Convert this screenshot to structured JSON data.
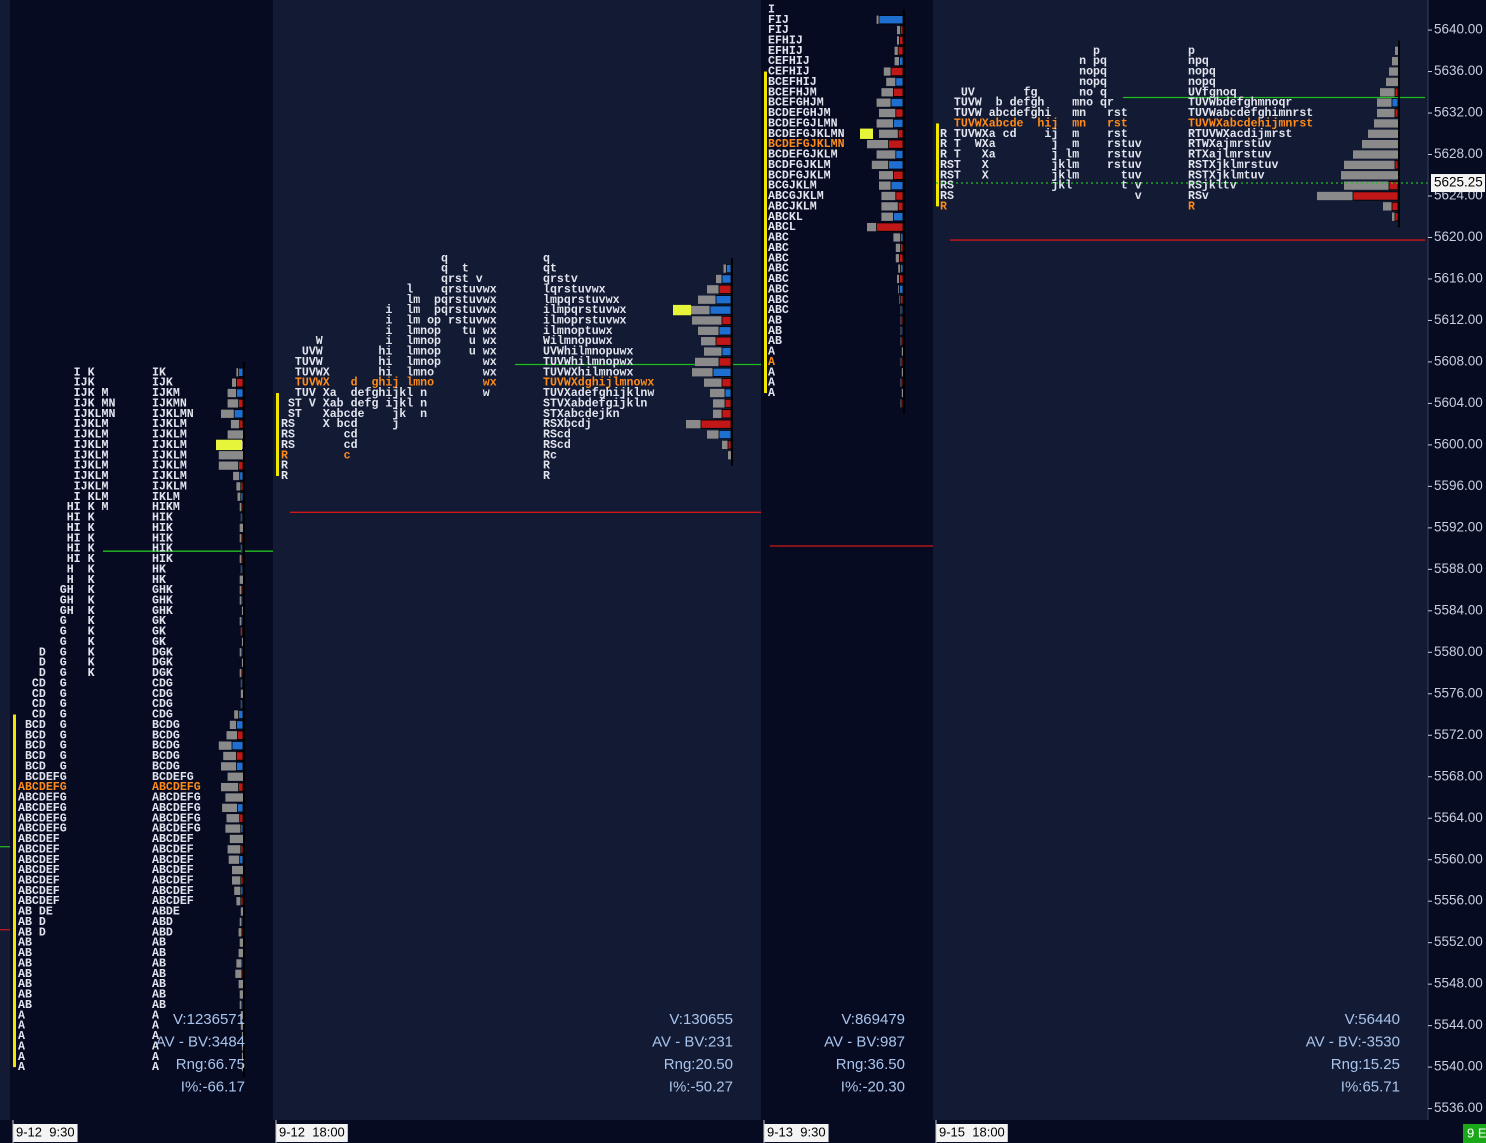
{
  "chart_data": {
    "type": "market-profile",
    "ylim": [
      5534.9,
      5642.9
    ],
    "yticks": [
      {
        "value": 5640,
        "label": "5640.00"
      },
      {
        "value": 5636,
        "label": "5636.00"
      },
      {
        "value": 5632,
        "label": "5632.00"
      },
      {
        "value": 5628,
        "label": "5628.00"
      },
      {
        "value": 5624,
        "label": "5624.00"
      },
      {
        "value": 5620,
        "label": "5620.00"
      },
      {
        "value": 5616,
        "label": "5616.00"
      },
      {
        "value": 5612,
        "label": "5612.00"
      },
      {
        "value": 5608,
        "label": "5608.00"
      },
      {
        "value": 5604,
        "label": "5604.00"
      },
      {
        "value": 5600,
        "label": "5600.00"
      },
      {
        "value": 5596,
        "label": "5596.00"
      },
      {
        "value": 5592,
        "label": "5592.00"
      },
      {
        "value": 5588,
        "label": "5588.00"
      },
      {
        "value": 5584,
        "label": "5584.00"
      },
      {
        "value": 5580,
        "label": "5580.00"
      },
      {
        "value": 5576,
        "label": "5576.00"
      },
      {
        "value": 5572,
        "label": "5572.00"
      },
      {
        "value": 5568,
        "label": "5568.00"
      },
      {
        "value": 5564,
        "label": "5564.00"
      },
      {
        "value": 5560,
        "label": "5560.00"
      },
      {
        "value": 5556,
        "label": "5556.00"
      },
      {
        "value": 5552,
        "label": "5552.00"
      },
      {
        "value": 5548,
        "label": "5548.00"
      },
      {
        "value": 5544,
        "label": "5544.00"
      },
      {
        "value": 5540,
        "label": "5540.00"
      },
      {
        "value": 5536,
        "label": "5536.00"
      }
    ],
    "last_price": 5625.25,
    "colors": {
      "letters": "#e2e5ee",
      "highlight": "#ff8c1a",
      "buy": "#1f6fd1",
      "sell": "#c01818",
      "volume": "#8a8a8a",
      "ib": "#f2e600",
      "vpoc": "#e6f53a",
      "stats": "#a9c4ec",
      "last": "#22c322"
    },
    "edge_levels": [
      {
        "price": 5561.25,
        "color": "#20c020"
      },
      {
        "price": 5553.25,
        "color": "#d01818"
      }
    ],
    "footer_tag": "9 E",
    "sessions": [
      {
        "label": "9-12  9:30",
        "stats": [
          "V:1236571",
          "AV - BV:3484",
          "Rng:66.75",
          "I%:-66.17"
        ],
        "ib": [
          5574,
          5540
        ],
        "vpoc": 5600,
        "levels": [
          {
            "price": 5589.75,
            "color": "#20c020"
          }
        ],
        "profiles": [
          {
            "top": 5607,
            "highlight": [
              40
            ],
            "rows": [
              "        I K",
              "        IJK",
              "        IJK M",
              "        IJK MN",
              "        IJKLMN",
              "        IJKLM",
              "        IJKLM",
              "        IJKLM",
              "        IJKLM",
              "        IJKLM",
              "        IJKLM",
              "        IJKLM",
              "        I KLM",
              "       HI K M",
              "       HI K",
              "       HI K",
              "       HI K",
              "       HI K",
              "       HI K",
              "       H  K",
              "       H  K",
              "      GH  K",
              "      GH  K",
              "      GH  K",
              "      G   K",
              "      G   K",
              "      G   K",
              "   D  G   K",
              "   D  G   K",
              "   D  G   K",
              "  CD  G",
              "  CD  G",
              "  CD  G",
              "  CD  G",
              " BCD  G",
              " BCD  G",
              " BCD  G",
              " BCD  G",
              " BCD  G",
              " BCDEFG",
              "ABCDEFG",
              "ABCDEFG",
              "ABCDEFG",
              "ABCDEFG",
              "ABCDEFG",
              "ABCDEF",
              "ABCDEF",
              "ABCDEF",
              "ABCDEF",
              "ABCDEF",
              "ABCDEF",
              "ABCDEF",
              "AB DE",
              "AB D",
              "AB D",
              "AB",
              "AB",
              "AB",
              "AB",
              "AB",
              "AB",
              "AB",
              "A",
              "A",
              "A",
              "A",
              "A",
              "A"
            ]
          },
          {
            "top": 5607,
            "highlight": [
              40
            ],
            "rows": [
              "IK",
              "IJK",
              "IJKM",
              "IJKMN",
              "IJKLMN",
              "IJKLM",
              "IJKLM",
              "IJKLM",
              "IJKLM",
              "IJKLM",
              "IJKLM",
              "IJKLM",
              "IKLM",
              "HIKM",
              "HIK",
              "HIK",
              "HIK",
              "HIK",
              "HIK",
              "HK",
              "HK",
              "GHK",
              "GHK",
              "GHK",
              "GK",
              "GK",
              "GK",
              "DGK",
              "DGK",
              "DGK",
              "CDG",
              "CDG",
              "CDG",
              "CDG",
              "BCDG",
              "BCDG",
              "BCDG",
              "BCDG",
              "BCDG",
              "BCDEFG",
              "ABCDEFG",
              "ABCDEFG",
              "ABCDEFG",
              "ABCDEFG",
              "ABCDEFG",
              "ABCDEF",
              "ABCDEF",
              "ABCDEF",
              "ABCDEF",
              "ABCDEF",
              "ABCDEF",
              "ABCDEF",
              "ABDE",
              "ABD",
              "ABD",
              "AB",
              "AB",
              "AB",
              "AB",
              "AB",
              "AB",
              "AB",
              "A",
              "A",
              "A",
              "A",
              "A",
              "A"
            ]
          }
        ],
        "volume": {
          "top": 5607,
          "values": [
            2,
            4,
            8,
            10,
            12,
            8,
            14,
            20,
            22,
            18,
            6,
            4,
            3,
            2,
            1,
            3,
            2,
            1,
            2,
            1,
            3,
            2,
            2,
            1,
            2,
            1,
            1,
            2,
            1,
            2,
            1,
            2,
            1,
            4,
            6,
            10,
            12,
            12,
            14,
            14,
            16,
            16,
            14,
            12,
            14,
            12,
            12,
            10,
            10,
            8,
            6,
            4,
            2,
            2,
            3,
            3,
            4,
            5,
            6,
            4,
            3,
            2,
            2,
            2,
            1,
            1,
            1,
            1
          ],
          "delta": [
            4,
            -6,
            6,
            -4,
            8,
            -3,
            0,
            0,
            0,
            -4,
            3,
            -2,
            2,
            -1,
            1,
            0,
            -1,
            1,
            -1,
            1,
            0,
            -1,
            1,
            0,
            1,
            -1,
            0,
            1,
            0,
            -1,
            1,
            0,
            1,
            4,
            6,
            -5,
            10,
            -6,
            6,
            0,
            -4,
            0,
            5,
            -3,
            2,
            0,
            -2,
            3,
            0,
            -2,
            2,
            -2,
            0,
            1,
            -1,
            0,
            0,
            1,
            -1,
            0,
            0,
            1,
            0,
            0,
            0,
            0,
            0,
            0
          ]
        }
      },
      {
        "label": "9-12  18:00",
        "stats": [
          "V:130655",
          "AV - BV:231",
          "Rng:20.50",
          "I%:-50.27"
        ],
        "ib": [
          5605,
          5597
        ],
        "vpoc": 5613,
        "levels": [
          {
            "price": 5593.5,
            "color": "#d01818"
          },
          {
            "price": 5607.75,
            "color": "#20c020"
          }
        ],
        "profiles": [
          {
            "top": 5618,
            "highlight": [
              12,
              19
            ],
            "rows": [
              "                       q",
              "                       q  t",
              "                       qrst v",
              "                  l    qrstuvwx",
              "                  lm  pqrstuvwx",
              "               i  lm  pqrstuvwx",
              "               i  lm op rstuvwx",
              "               i  lmnop   tu wx",
              "     W         i  lmnop    u wx",
              "   UVW        hi  lmnop    u wx",
              "  TUVW        hi  lmnop      wx",
              "  TUVWX       hi  lmno       wx",
              "  TUVWX   d  ghij lmno       wx",
              "  TUV Xa  defghijkl n        w",
              " ST V Xab defg ijkl n",
              " ST   Xabcde    jk  n",
              "RS    X bcd     j",
              "RS       cd",
              "RS       cd",
              "R        c",
              "R",
              "R"
            ]
          },
          {
            "top": 5618,
            "highlight": [
              12
            ],
            "rows": [
              "q",
              "qt",
              "qrstv",
              "lqrstuvwx",
              "lmpqrstuvwx",
              "ilmpqrstuvwx",
              "ilmoprstuvwx",
              "ilmnoptuwx",
              "Wilmnopuwx",
              "UVWhilmnopuwx",
              "TUVWhilmnopwx",
              "TUVWXhilmnowx",
              "TUVWXdghijlmnowx",
              "TUVXadefghijklnw",
              "STVXabdefgijkln",
              "STXabcdejkn",
              "RSXbcdj",
              "RScd",
              "RScd",
              "Rc",
              "R",
              "R"
            ]
          }
        ],
        "volume": {
          "top": 5617,
          "values": [
            2,
            4,
            8,
            12,
            16,
            20,
            14,
            10,
            12,
            16,
            14,
            12,
            10,
            8,
            6,
            10,
            8,
            4,
            2
          ],
          "delta": [
            3,
            6,
            -8,
            10,
            14,
            -6,
            8,
            -10,
            6,
            -8,
            12,
            -6,
            4,
            -4,
            -6,
            -20,
            8,
            -2,
            0
          ]
        }
      },
      {
        "label": "9-13  9:30",
        "stats": [
          "V:869479",
          "AV - BV:987",
          "Rng:36.50",
          "I%:-20.30"
        ],
        "ib": [
          5636,
          5605
        ],
        "vpoc": 5630,
        "levels": [
          {
            "price": 5590.25,
            "color": "#d01818"
          }
        ],
        "profiles": [
          {
            "top": 5642,
            "highlight": [
              13,
              34
            ],
            "rows": [
              "I",
              "FIJ",
              "FIJ",
              "EFHIJ",
              "EFHIJ",
              "CEFHIJ",
              "CEFHIJ",
              "BCEFHIJ",
              "BCEFHJM",
              "BCEFGHJM",
              "BCDEFGHJM",
              "BCDEFGJLMN",
              "BCDEFGJKLMN",
              "BCDEFGJKLMN",
              "BCDEFGJKLM",
              "BCDFGJKLM",
              "BCDFGJKLM",
              "BCGJKLM",
              "ABCGJKLM",
              "ABCJKLM",
              "ABCKL",
              "ABCL",
              "ABC",
              "ABC",
              "ABC",
              "ABC",
              "ABC",
              "ABC",
              "ABC",
              "ABC",
              "AB",
              "AB",
              "AB",
              "A",
              "A",
              "A",
              "A",
              "A"
            ]
          }
        ],
        "volume": {
          "top": 5641,
          "values": [
            2,
            3,
            2,
            3,
            4,
            6,
            8,
            10,
            12,
            14,
            14,
            16,
            18,
            16,
            14,
            12,
            10,
            12,
            14,
            10,
            8,
            6,
            4,
            3,
            2,
            2,
            1,
            1,
            1,
            1,
            1,
            1,
            1,
            1,
            1,
            1,
            1,
            1
          ],
          "delta": [
            20,
            -2,
            -3,
            -4,
            3,
            -10,
            6,
            -8,
            10,
            -6,
            8,
            -4,
            -12,
            6,
            12,
            -8,
            10,
            -6,
            -4,
            8,
            -22,
            2,
            -2,
            -3,
            2,
            -3,
            3,
            -2,
            1,
            -1,
            1,
            -1,
            0,
            -1,
            0,
            -1,
            0,
            -1
          ]
        }
      },
      {
        "label": "9-15  18:00",
        "stats": [
          "V:56440",
          "AV - BV:-3530",
          "Rng:15.25",
          "I%:65.71"
        ],
        "ib": [
          5631,
          5623
        ],
        "levels": [
          {
            "price": 5633.5,
            "color": "#20c020"
          },
          {
            "price": 5619.75,
            "color": "#d01818"
          }
        ],
        "profiles": [
          {
            "top": 5638,
            "highlight": [
              7,
              15
            ],
            "rows": [
              "                      p",
              "                    n pq",
              "                    nopq",
              "                    nopq",
              "   UV       fg      no q",
              "  TUVW  b defgh    mno qr",
              "  TUVW abcdefghi   mn   rst",
              "  TUVWXabcde  hij  mn   rst",
              "R TUVWXa cd    ij  m    rst",
              "R T  WXa        j  m    rstuv",
              "R T   Xa        j lm    rstuv",
              "RST   X         jklm    rstuv",
              "RST   X         jklm      tuv",
              "RS              jkl       t v",
              "RS                          v",
              "R"
            ]
          },
          {
            "top": 5638,
            "highlight": [
              7,
              15
            ],
            "rows": [
              "p",
              "npq",
              "nopq",
              "nopq",
              "UVfgnoq",
              "TUVWbdefghmnoqr",
              "TUVWabcdefghimnrst",
              "TUVWXabcdehijmnrst",
              "RTUVWXacdijmrst",
              "RTWXajmrstuv",
              "RTXajlmrstuv",
              "RSTXjklmrstuv",
              "RSTXjklmtuv",
              "RSjkltv",
              "RSv",
              "R"
            ]
          }
        ],
        "volume": {
          "top": 5638,
          "values": [
            2,
            4,
            6,
            8,
            10,
            10,
            12,
            16,
            20,
            24,
            30,
            34,
            38,
            30,
            24,
            6,
            2
          ],
          "delta": [
            0,
            0,
            0,
            0,
            -2,
            4,
            -2,
            0,
            0,
            0,
            0,
            -2,
            0,
            -6,
            -30,
            -4,
            -2
          ]
        }
      }
    ]
  }
}
